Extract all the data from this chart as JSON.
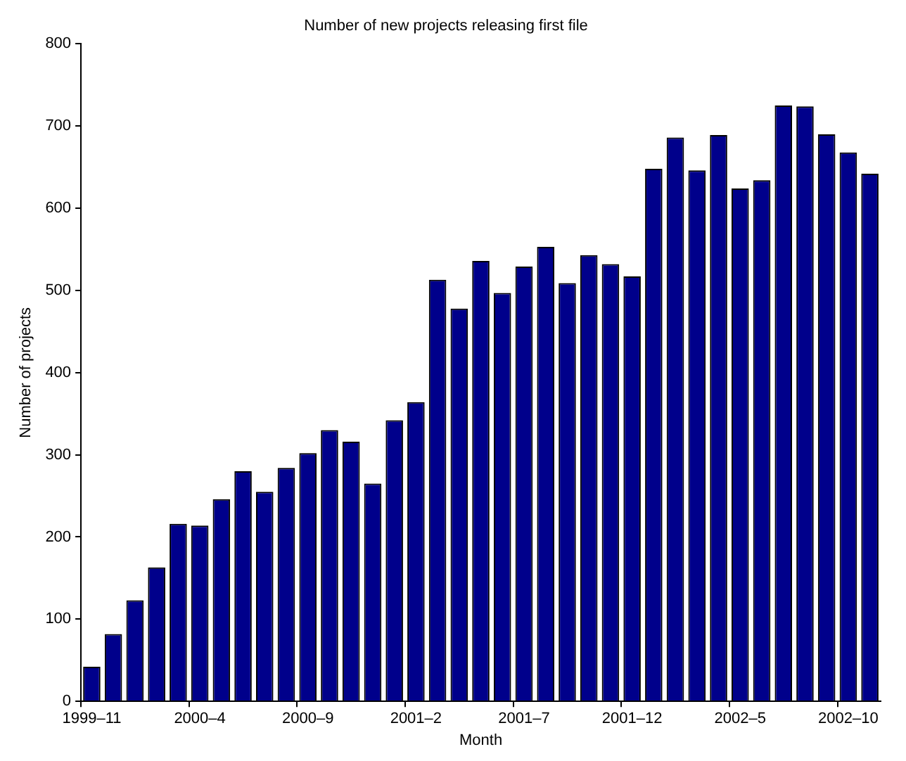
{
  "chart_data": {
    "type": "bar",
    "title": "Number of new projects releasing first file",
    "xlabel": "Month",
    "ylabel": "Number of projects",
    "categories": [
      "1999–11",
      null,
      null,
      null,
      null,
      "2000–4",
      null,
      null,
      null,
      null,
      "2000–9",
      null,
      null,
      null,
      null,
      "2001–2",
      null,
      null,
      null,
      null,
      "2001–7",
      null,
      null,
      null,
      null,
      "2001–12",
      null,
      null,
      null,
      null,
      "2002–5",
      null,
      null,
      null,
      null,
      "2002–10",
      null
    ],
    "values": [
      42,
      82,
      123,
      163,
      216,
      214,
      246,
      280,
      255,
      284,
      302,
      330,
      316,
      265,
      342,
      364,
      513,
      478,
      536,
      497,
      529,
      553,
      509,
      543,
      532,
      517,
      648,
      686,
      646,
      689,
      624,
      634,
      725,
      724,
      690,
      668,
      642
    ],
    "color": "#00008b",
    "ylim": [
      0,
      800
    ],
    "yticks": [
      0,
      100,
      200,
      300,
      400,
      500,
      600,
      700,
      800
    ],
    "grid": false,
    "legend": false
  }
}
